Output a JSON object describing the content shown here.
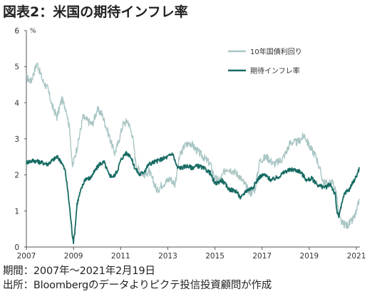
{
  "title": "図表2：米国の期待インフレ率",
  "footnotes": {
    "period": "期間：2007年～2021年2月19日",
    "source": "出所：Bloombergのデータよりピクテ投信投資顧問が作成"
  },
  "chart_data": {
    "type": "line",
    "unit_label": "%",
    "xlim": [
      2007.0,
      2021.15
    ],
    "ylim": [
      0,
      6
    ],
    "x_ticks": [
      2007,
      2009,
      2011,
      2013,
      2015,
      2017,
      2019,
      2021
    ],
    "y_ticks": [
      0,
      1,
      2,
      3,
      4,
      5,
      6
    ],
    "grid": false,
    "legend_position": "top-right",
    "series": [
      {
        "name": "10年国債利回り",
        "color": "#a9c6c5",
        "x": [
          2007.0,
          2007.2,
          2007.45,
          2007.7,
          2007.9,
          2008.1,
          2008.3,
          2008.5,
          2008.7,
          2008.85,
          2008.95,
          2009.05,
          2009.2,
          2009.4,
          2009.6,
          2009.8,
          2010.0,
          2010.2,
          2010.4,
          2010.6,
          2010.75,
          2010.9,
          2011.1,
          2011.3,
          2011.5,
          2011.65,
          2011.8,
          2012.0,
          2012.2,
          2012.4,
          2012.55,
          2012.7,
          2012.9,
          2013.1,
          2013.3,
          2013.5,
          2013.7,
          2013.95,
          2014.2,
          2014.5,
          2014.8,
          2015.0,
          2015.2,
          2015.5,
          2015.8,
          2016.0,
          2016.2,
          2016.5,
          2016.7,
          2016.9,
          2017.2,
          2017.5,
          2017.8,
          2018.0,
          2018.2,
          2018.5,
          2018.8,
          2019.0,
          2019.3,
          2019.6,
          2019.8,
          2020.0,
          2020.15,
          2020.25,
          2020.4,
          2020.6,
          2020.8,
          2021.0,
          2021.13
        ],
        "values": [
          4.7,
          4.6,
          5.1,
          4.6,
          4.4,
          3.9,
          3.6,
          4.1,
          3.8,
          3.2,
          2.2,
          2.5,
          2.9,
          3.6,
          3.5,
          3.4,
          3.8,
          3.7,
          3.3,
          2.9,
          2.6,
          2.9,
          3.4,
          3.5,
          3.1,
          2.3,
          2.1,
          2.0,
          2.1,
          1.8,
          1.55,
          1.7,
          1.8,
          1.9,
          1.75,
          2.5,
          2.8,
          2.9,
          2.7,
          2.5,
          2.3,
          1.9,
          1.85,
          2.2,
          2.1,
          2.0,
          1.8,
          1.5,
          1.6,
          2.4,
          2.5,
          2.3,
          2.4,
          2.6,
          2.9,
          2.9,
          3.1,
          2.8,
          2.5,
          1.8,
          1.75,
          1.8,
          1.5,
          0.85,
          0.65,
          0.6,
          0.7,
          0.95,
          1.33
        ]
      },
      {
        "name": "期待インフレ率",
        "color": "#176b63",
        "x": [
          2007.0,
          2007.3,
          2007.6,
          2007.9,
          2008.1,
          2008.3,
          2008.5,
          2008.65,
          2008.75,
          2008.85,
          2008.95,
          2009.0,
          2009.05,
          2009.15,
          2009.3,
          2009.5,
          2009.7,
          2009.9,
          2010.1,
          2010.3,
          2010.5,
          2010.7,
          2010.85,
          2011.0,
          2011.2,
          2011.4,
          2011.6,
          2011.8,
          2012.0,
          2012.2,
          2012.4,
          2012.6,
          2012.8,
          2013.0,
          2013.2,
          2013.4,
          2013.6,
          2013.8,
          2014.0,
          2014.3,
          2014.6,
          2014.8,
          2015.0,
          2015.3,
          2015.6,
          2015.9,
          2016.1,
          2016.3,
          2016.6,
          2016.9,
          2017.1,
          2017.4,
          2017.7,
          2018.0,
          2018.3,
          2018.6,
          2018.9,
          2019.1,
          2019.4,
          2019.7,
          2019.9,
          2020.0,
          2020.1,
          2020.17,
          2020.25,
          2020.35,
          2020.5,
          2020.7,
          2020.9,
          2021.0,
          2021.13
        ],
        "values": [
          2.35,
          2.4,
          2.35,
          2.3,
          2.4,
          2.5,
          2.35,
          2.1,
          1.6,
          1.0,
          0.35,
          0.15,
          0.4,
          1.2,
          1.55,
          1.9,
          1.9,
          2.1,
          2.3,
          2.35,
          2.0,
          1.95,
          2.1,
          2.4,
          2.6,
          2.55,
          2.2,
          2.0,
          2.1,
          2.3,
          2.35,
          2.4,
          2.45,
          2.5,
          2.6,
          2.2,
          2.2,
          2.25,
          2.2,
          2.25,
          2.15,
          2.05,
          1.75,
          1.85,
          1.6,
          1.55,
          1.35,
          1.55,
          1.65,
          1.95,
          2.0,
          1.85,
          1.95,
          2.1,
          2.15,
          2.1,
          1.85,
          1.9,
          1.7,
          1.65,
          1.75,
          1.6,
          1.45,
          1.0,
          0.85,
          1.1,
          1.5,
          1.6,
          1.85,
          1.95,
          2.21
        ]
      }
    ]
  }
}
